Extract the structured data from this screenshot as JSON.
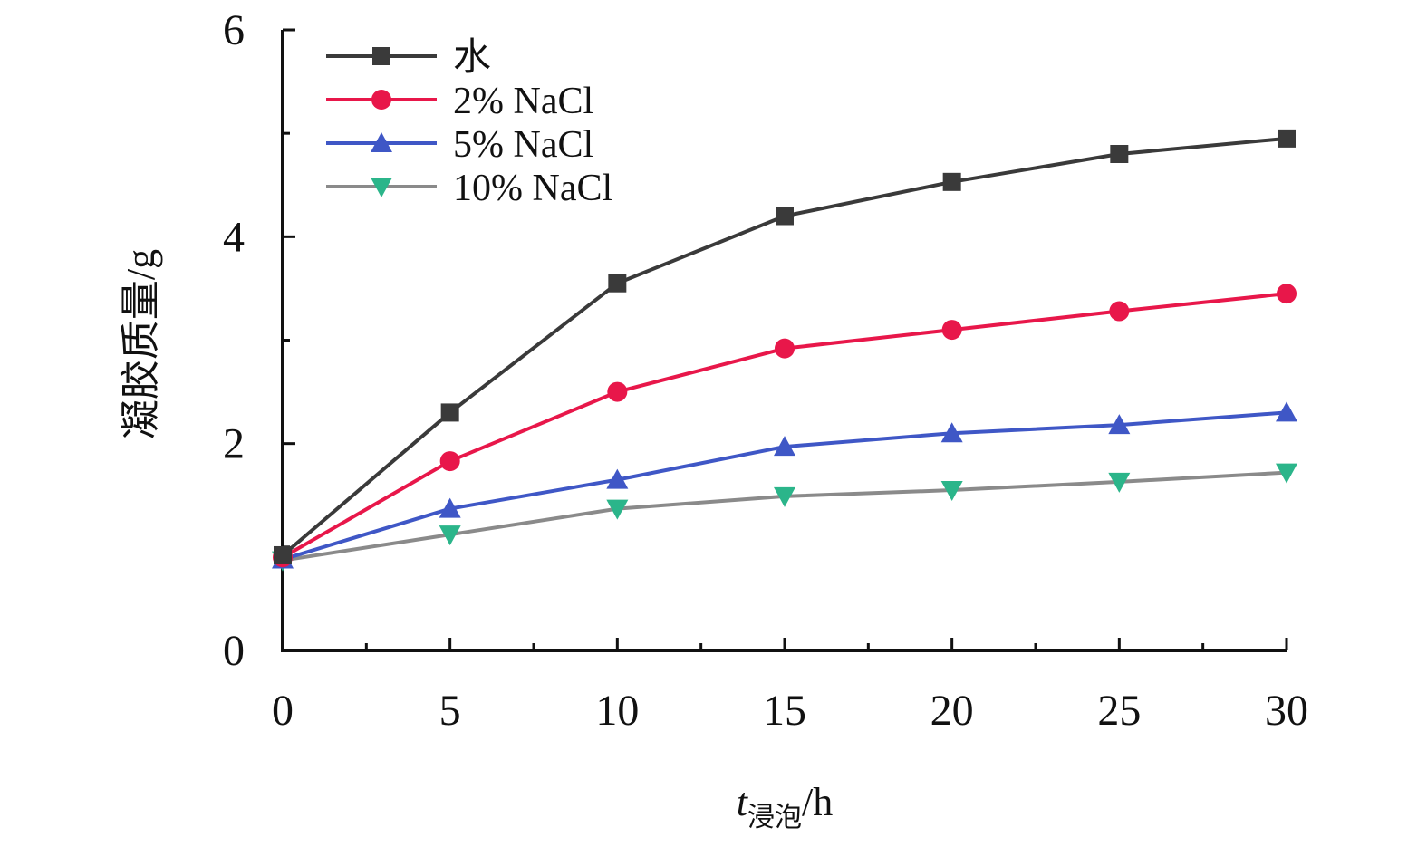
{
  "chart_data": {
    "type": "line",
    "title": "",
    "xlabel": {
      "main": "t",
      "subscript": "浸泡",
      "unit": "/h"
    },
    "ylabel": "凝胶质量/g",
    "xlim": [
      0,
      30
    ],
    "ylim": [
      0,
      6
    ],
    "x_ticks": [
      0,
      5,
      10,
      15,
      20,
      25,
      30
    ],
    "y_ticks": [
      0,
      2,
      4,
      6
    ],
    "x_tick_labels": [
      "0",
      "5",
      "10",
      "15",
      "20",
      "25",
      "30"
    ],
    "y_tick_labels": [
      "0",
      "2",
      "4",
      "6"
    ],
    "x_minor_step": 2.5,
    "y_minor_step": 1,
    "grid": false,
    "legend_position": "top-left",
    "x": [
      0,
      5,
      10,
      15,
      20,
      25,
      30
    ],
    "series": [
      {
        "name": "水",
        "marker": "square",
        "color": "#3a3a3a",
        "values": [
          0.92,
          2.3,
          3.55,
          4.2,
          4.53,
          4.8,
          4.95
        ]
      },
      {
        "name": "2% NaCl",
        "marker": "circle",
        "color": "#e8174a",
        "values": [
          0.9,
          1.83,
          2.5,
          2.92,
          3.1,
          3.28,
          3.45
        ]
      },
      {
        "name": "5% NaCl",
        "marker": "triangle-up",
        "color": "#3f57c6",
        "values": [
          0.88,
          1.37,
          1.65,
          1.97,
          2.1,
          2.18,
          2.3
        ]
      },
      {
        "name": "10% NaCl",
        "marker": "triangle-down",
        "color": "#2bb58a",
        "line_color": "#8a8a8a",
        "values": [
          0.87,
          1.12,
          1.37,
          1.49,
          1.55,
          1.63,
          1.72
        ]
      }
    ]
  }
}
